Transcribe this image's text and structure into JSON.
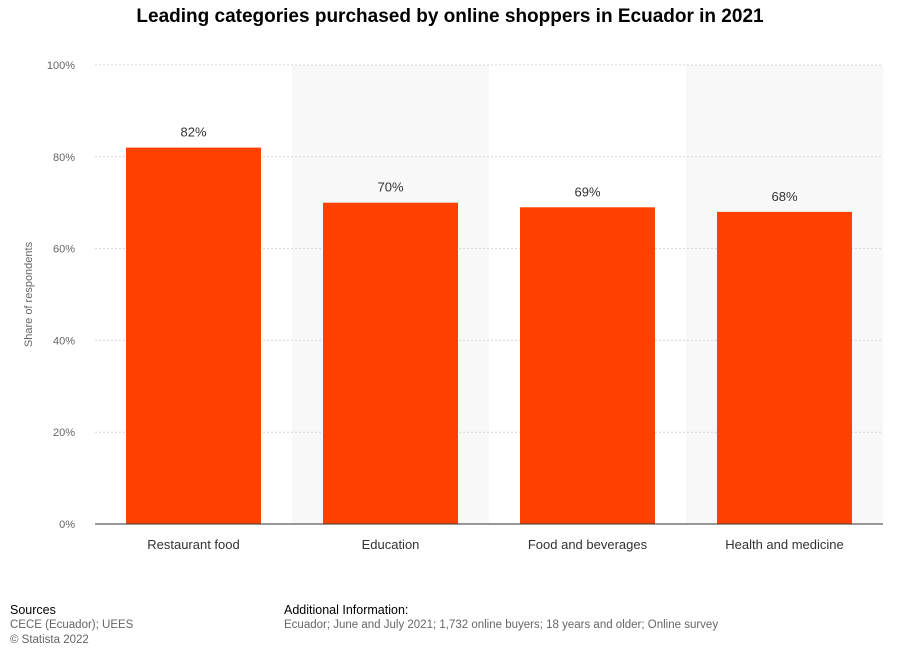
{
  "chart_data": {
    "type": "bar",
    "title": "Leading categories purchased by online shoppers in Ecuador in 2021",
    "categories": [
      "Restaurant food",
      "Education",
      "Food and beverages",
      "Health and medicine"
    ],
    "values": [
      82,
      70,
      69,
      68
    ],
    "data_labels": [
      "82%",
      "70%",
      "69%",
      "68%"
    ],
    "ylabel": "Share of respondents",
    "xlabel": "",
    "ylim": [
      0,
      100
    ],
    "yticks": [
      0,
      20,
      40,
      60,
      80,
      100
    ],
    "ytick_labels": [
      "0%",
      "20%",
      "40%",
      "60%",
      "80%",
      "100%"
    ],
    "grid": true,
    "bar_color": "#ff4100",
    "band_color": "#f8f8f8"
  },
  "footer": {
    "sources_heading": "Sources",
    "sources_line1": "CECE (Ecuador); UEES",
    "sources_line2": "© Statista 2022",
    "info_heading": "Additional Information:",
    "info_text": "Ecuador; June and July 2021; 1,732 online buyers; 18 years and older; Online survey"
  }
}
